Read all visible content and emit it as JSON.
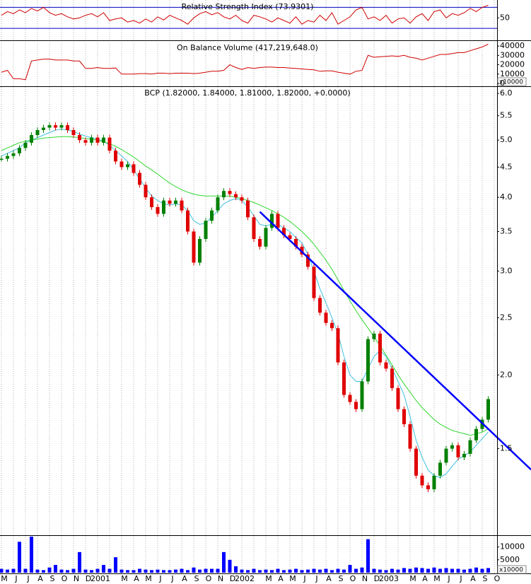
{
  "chart_data": [
    {
      "type": "line",
      "title": "Relative Strength Index (73.9301)",
      "color": "#d00000",
      "level_color": "#0000c0",
      "ylim": [
        10,
        80
      ],
      "yticks": [
        50
      ],
      "levels": [
        70,
        30
      ],
      "values": [
        55,
        62,
        58,
        65,
        60,
        68,
        63,
        70,
        60,
        55,
        58,
        52,
        48,
        50,
        55,
        58,
        52,
        60,
        45,
        48,
        50,
        42,
        45,
        40,
        48,
        42,
        52,
        46,
        55,
        50,
        45,
        38,
        50,
        58,
        62,
        56,
        60,
        52,
        48,
        55,
        45,
        40,
        55,
        52,
        48,
        42,
        50,
        45,
        40,
        52,
        38,
        45,
        42,
        55,
        45,
        60,
        38,
        45,
        52,
        65,
        70,
        48,
        52,
        45,
        55,
        40,
        48,
        50,
        40,
        52,
        58,
        45,
        62,
        65,
        50,
        58,
        55,
        60,
        68,
        62,
        70,
        74,
        null,
        null
      ]
    },
    {
      "type": "line",
      "title": "On Balance Volume (417,219,648.0)",
      "color": "#d00000",
      "y_unit": "x10000",
      "ylim": [
        0,
        45000
      ],
      "yticks": [
        40000,
        30000,
        20000,
        10000,
        0
      ],
      "values": [
        12000,
        14000,
        5000,
        5000,
        4000,
        24000,
        25000,
        26000,
        26000,
        25000,
        25000,
        25000,
        24000,
        24000,
        16000,
        16000,
        17000,
        16000,
        16000,
        16500,
        10000,
        10000,
        10000,
        10500,
        10500,
        10000,
        11000,
        11000,
        10500,
        11000,
        11000,
        11000,
        10500,
        11000,
        12000,
        13000,
        13000,
        14000,
        20000,
        17000,
        15000,
        17000,
        16000,
        17000,
        17500,
        17500,
        17000,
        17000,
        16500,
        16000,
        15500,
        15000,
        14500,
        13000,
        13500,
        13500,
        12000,
        11000,
        10000,
        13000,
        14000,
        30000,
        28000,
        28500,
        29000,
        29500,
        29000,
        30000,
        28000,
        27000,
        25000,
        27000,
        29000,
        31000,
        31000,
        32000,
        33000,
        33000,
        35000,
        37000,
        39000,
        42000,
        null,
        null
      ]
    },
    {
      "type": "candlestick",
      "title": "BCP (1.82000, 1.84000, 1.81000, 1.82000, +0.0000)",
      "log_scale": true,
      "grid": true,
      "up_color": "#008000",
      "down_color": "#e00000",
      "ylim": [
        1.07,
        6.17
      ],
      "yticks": [
        {
          "value": 6,
          "label": "6.0"
        },
        5.5,
        {
          "value": 5,
          "label": "5.0"
        },
        4.5,
        {
          "value": 4,
          "label": "4.0"
        },
        3.5,
        {
          "value": 3,
          "label": "3.0"
        },
        2.5,
        {
          "value": 2,
          "label": "2.0"
        },
        1.5
      ],
      "categories": [
        "M",
        null,
        "J",
        null,
        "J",
        null,
        "A",
        null,
        "S",
        null,
        "O",
        null,
        "N",
        null,
        "D",
        null,
        "2001",
        null,
        null,
        null,
        "M",
        null,
        "A",
        null,
        "M",
        null,
        "J",
        null,
        "J",
        null,
        "A",
        null,
        "S",
        null,
        "O",
        null,
        "N",
        null,
        "D",
        null,
        "2002",
        null,
        null,
        null,
        "M",
        null,
        "A",
        null,
        "M",
        null,
        "J",
        null,
        "J",
        null,
        "A",
        null,
        "S",
        null,
        "O",
        null,
        "N",
        null,
        "D",
        null,
        "2003",
        null,
        null,
        null,
        "M",
        null,
        "A",
        null,
        "M",
        null,
        "J",
        null,
        "J",
        null,
        "A",
        null,
        "S",
        null,
        "O",
        null
      ],
      "values": [
        4.65,
        4.7,
        4.75,
        4.85,
        4.95,
        5.1,
        5.2,
        5.25,
        5.3,
        5.25,
        5.3,
        5.2,
        5.1,
        5.0,
        4.95,
        5.05,
        4.95,
        5.05,
        4.8,
        4.6,
        4.5,
        4.55,
        4.4,
        4.2,
        4.0,
        3.85,
        3.75,
        3.95,
        3.9,
        3.95,
        3.8,
        3.5,
        3.1,
        3.4,
        3.65,
        3.8,
        4.0,
        4.1,
        4.05,
        4.0,
        3.95,
        3.7,
        3.4,
        3.3,
        3.55,
        3.75,
        3.55,
        3.45,
        3.4,
        3.3,
        3.2,
        3.05,
        2.7,
        2.55,
        2.45,
        2.4,
        2.1,
        1.85,
        1.8,
        1.75,
        1.95,
        2.3,
        2.35,
        2.1,
        2.05,
        1.9,
        1.75,
        1.65,
        1.5,
        1.35,
        1.3,
        1.28,
        1.35,
        1.42,
        1.5,
        1.52,
        1.45,
        1.47,
        1.55,
        1.62,
        1.68,
        1.82,
        null,
        null
      ],
      "series": [
        {
          "color": "#40c0e0",
          "values": [
            4.7,
            4.75,
            4.8,
            4.85,
            4.95,
            5.0,
            5.05,
            5.1,
            5.15,
            5.2,
            5.22,
            5.2,
            5.17,
            5.12,
            5.08,
            5.05,
            5.02,
            4.98,
            4.9,
            4.8,
            4.7,
            4.6,
            4.45,
            4.3,
            4.15,
            4.02,
            3.95,
            3.9,
            3.88,
            3.9,
            3.88,
            3.8,
            3.65,
            3.6,
            3.62,
            3.7,
            3.8,
            3.9,
            3.95,
            3.98,
            3.95,
            3.85,
            3.72,
            3.6,
            3.58,
            3.6,
            3.6,
            3.55,
            3.5,
            3.42,
            3.35,
            3.2,
            3.0,
            2.8,
            2.65,
            2.5,
            2.35,
            2.15,
            2.0,
            1.95,
            1.95,
            2.05,
            2.15,
            2.2,
            2.15,
            2.05,
            1.95,
            1.85,
            1.7,
            1.55,
            1.45,
            1.38,
            1.35,
            1.34,
            1.36,
            1.4,
            1.44,
            1.46,
            1.48,
            1.52,
            1.56,
            1.6,
            null,
            null
          ]
        },
        {
          "color": "#30d830",
          "values": [
            4.8,
            4.85,
            4.9,
            4.95,
            4.98,
            5.0,
            5.02,
            5.04,
            5.05,
            5.06,
            5.07,
            5.07,
            5.06,
            5.05,
            5.03,
            5.02,
            5.0,
            4.97,
            4.93,
            4.88,
            4.82,
            4.75,
            4.68,
            4.6,
            4.52,
            4.45,
            4.38,
            4.3,
            4.23,
            4.17,
            4.12,
            4.08,
            4.05,
            4.03,
            4.02,
            4.02,
            4.02,
            4.02,
            4.02,
            4.0,
            3.98,
            3.95,
            3.92,
            3.88,
            3.84,
            3.8,
            3.75,
            3.7,
            3.64,
            3.57,
            3.5,
            3.42,
            3.33,
            3.23,
            3.13,
            3.02,
            2.9,
            2.78,
            2.67,
            2.57,
            2.48,
            2.4,
            2.32,
            2.24,
            2.16,
            2.08,
            2.0,
            1.93,
            1.87,
            1.81,
            1.76,
            1.72,
            1.68,
            1.65,
            1.63,
            1.61,
            1.6,
            1.59,
            1.58,
            1.59,
            1.6,
            1.62,
            null,
            null
          ]
        }
      ],
      "trendline": {
        "color": "#0000ff",
        "x": [
          43,
          81
        ],
        "values": [
          3.78,
          1.62
        ]
      }
    },
    {
      "type": "bar",
      "color": "#0000ff",
      "y_unit": "x10000",
      "ylim": [
        0,
        14000
      ],
      "yticks": [
        10000,
        5000
      ],
      "values": [
        1500,
        1200,
        1500,
        12000,
        1500,
        14000,
        1200,
        1000,
        2000,
        3000,
        1200,
        1000,
        1500,
        8000,
        1200,
        1000,
        1500,
        3000,
        1500,
        6000,
        1200,
        1000,
        1000,
        1500,
        1200,
        1000,
        1200,
        1000,
        1000,
        1200,
        1500,
        1000,
        2000,
        1200,
        1500,
        1500,
        1500,
        8000,
        5000,
        2500,
        1200,
        1000,
        1500,
        1000,
        1200,
        1000,
        1500,
        1000,
        1200,
        1500,
        1000,
        1200,
        1500,
        1200,
        1500,
        1000,
        1500,
        1200,
        3000,
        1500,
        2000,
        13000,
        1500,
        1200,
        1000,
        1500,
        1200,
        1800,
        1500,
        2000,
        1800,
        1500,
        2000,
        1500,
        1800,
        1500,
        1500,
        1200,
        1500,
        2000,
        1500,
        1800,
        null,
        null
      ]
    }
  ]
}
